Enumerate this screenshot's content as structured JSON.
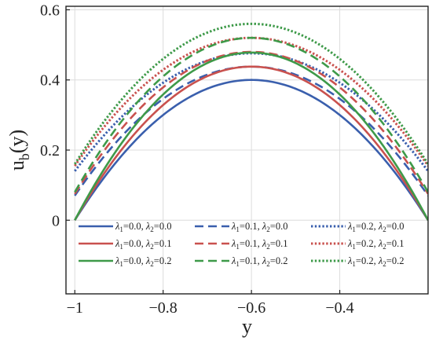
{
  "chart_data": {
    "type": "line",
    "xlabel": "y",
    "ylabel": "u",
    "ylabel_sub": "b",
    "ylabel_arg": "(y)",
    "xlim": [
      -1.02,
      -0.2
    ],
    "ylim": [
      -0.21,
      0.61
    ],
    "xticks": [
      -1,
      -0.8,
      -0.6,
      -0.4
    ],
    "xtick_labels": [
      "−1",
      "−0.8",
      "−0.6",
      "−0.4"
    ],
    "yticks": [
      0,
      0.2,
      0.4,
      0.6
    ],
    "ytick_labels": [
      "0",
      "0.2",
      "0.4",
      "0.6"
    ],
    "grid": true,
    "legend_position": "lower-center",
    "legend_columns": 3,
    "colors": {
      "blue": "#3a5fad",
      "red": "#c9514e",
      "green": "#3e9a49"
    },
    "series": [
      {
        "name": "λ1=0.0, λ2=0.0",
        "label": {
          "sym1": "λ",
          "sub1": "1",
          "val1": "=0.0, ",
          "sym2": "λ",
          "sub2": "2",
          "val2": "=0.0"
        },
        "color": "#3a5fad",
        "style": "solid",
        "x": [
          -1,
          -0.9,
          -0.8,
          -0.7,
          -0.6,
          -0.5,
          -0.4,
          -0.3,
          -0.2
        ],
        "y": [
          0,
          0.175,
          0.3,
          0.375,
          0.4,
          0.375,
          0.3,
          0.175,
          0
        ]
      },
      {
        "name": "λ1=0.1, λ2=0.0",
        "label": {
          "sym1": "λ",
          "sub1": "1",
          "val1": "=0.1, ",
          "sym2": "λ",
          "sub2": "2",
          "val2": "=0.0"
        },
        "color": "#3a5fad",
        "style": "dashed",
        "x": [
          -1,
          -0.9,
          -0.8,
          -0.7,
          -0.6,
          -0.5,
          -0.4,
          -0.3,
          -0.2
        ],
        "y": [
          0.07,
          0.23,
          0.345,
          0.415,
          0.438,
          0.415,
          0.345,
          0.23,
          0.07
        ]
      },
      {
        "name": "λ1=0.2, λ2=0.0",
        "label": {
          "sym1": "λ",
          "sub1": "1",
          "val1": "=0.2, ",
          "sym2": "λ",
          "sub2": "2",
          "val2": "=0.0"
        },
        "color": "#3a5fad",
        "style": "dotted",
        "x": [
          -1,
          -0.9,
          -0.8,
          -0.7,
          -0.6,
          -0.5,
          -0.4,
          -0.3,
          -0.2
        ],
        "y": [
          0.14,
          0.285,
          0.39,
          0.455,
          0.476,
          0.455,
          0.39,
          0.285,
          0.14
        ]
      },
      {
        "name": "λ1=0.0, λ2=0.1",
        "label": {
          "sym1": "λ",
          "sub1": "1",
          "val1": "=0.0, ",
          "sym2": "λ",
          "sub2": "2",
          "val2": "=0.1"
        },
        "color": "#c9514e",
        "style": "solid",
        "x": [
          -1,
          -0.9,
          -0.8,
          -0.7,
          -0.6,
          -0.5,
          -0.4,
          -0.3,
          -0.2
        ],
        "y": [
          0,
          0.191,
          0.328,
          0.41,
          0.438,
          0.41,
          0.328,
          0.191,
          0
        ]
      },
      {
        "name": "λ1=0.1, λ2=0.1",
        "label": {
          "sym1": "λ",
          "sub1": "1",
          "val1": "=0.1, ",
          "sym2": "λ",
          "sub2": "2",
          "val2": "=0.1"
        },
        "color": "#c9514e",
        "style": "dashed",
        "x": [
          -1,
          -0.9,
          -0.8,
          -0.7,
          -0.6,
          -0.5,
          -0.4,
          -0.3,
          -0.2
        ],
        "y": [
          0.075,
          0.253,
          0.379,
          0.455,
          0.48,
          0.455,
          0.379,
          0.253,
          0.075
        ]
      },
      {
        "name": "λ1=0.2, λ2=0.1",
        "label": {
          "sym1": "λ",
          "sub1": "1",
          "val1": "=0.2, ",
          "sym2": "λ",
          "sub2": "2",
          "val2": "=0.1"
        },
        "color": "#c9514e",
        "style": "dotted",
        "x": [
          -1,
          -0.9,
          -0.8,
          -0.7,
          -0.6,
          -0.5,
          -0.4,
          -0.3,
          -0.2
        ],
        "y": [
          0.155,
          0.31,
          0.42,
          0.487,
          0.52,
          0.487,
          0.42,
          0.31,
          0.155
        ]
      },
      {
        "name": "λ1=0.0, λ2=0.2",
        "label": {
          "sym1": "λ",
          "sub1": "1",
          "val1": "=0.0, ",
          "sym2": "λ",
          "sub2": "2",
          "val2": "=0.2"
        },
        "color": "#3e9a49",
        "style": "solid",
        "x": [
          -1,
          -0.9,
          -0.8,
          -0.7,
          -0.6,
          -0.5,
          -0.4,
          -0.3,
          -0.2
        ],
        "y": [
          0,
          0.21,
          0.36,
          0.45,
          0.478,
          0.45,
          0.36,
          0.21,
          0
        ]
      },
      {
        "name": "λ1=0.1, λ2=0.2",
        "label": {
          "sym1": "λ",
          "sub1": "1",
          "val1": "=0.1, ",
          "sym2": "λ",
          "sub2": "2",
          "val2": "=0.2"
        },
        "color": "#3e9a49",
        "style": "dashed",
        "x": [
          -1,
          -0.9,
          -0.8,
          -0.7,
          -0.6,
          -0.5,
          -0.4,
          -0.3,
          -0.2
        ],
        "y": [
          0.08,
          0.272,
          0.41,
          0.492,
          0.52,
          0.492,
          0.41,
          0.272,
          0.08
        ]
      },
      {
        "name": "λ1=0.2, λ2=0.2",
        "label": {
          "sym1": "λ",
          "sub1": "1",
          "val1": "=0.2, ",
          "sym2": "λ",
          "sub2": "2",
          "val2": "=0.2"
        },
        "color": "#3e9a49",
        "style": "dotted",
        "x": [
          -1,
          -0.9,
          -0.8,
          -0.7,
          -0.6,
          -0.5,
          -0.4,
          -0.3,
          -0.2
        ],
        "y": [
          0.16,
          0.335,
          0.46,
          0.535,
          0.56,
          0.535,
          0.46,
          0.335,
          0.16
        ]
      }
    ]
  }
}
